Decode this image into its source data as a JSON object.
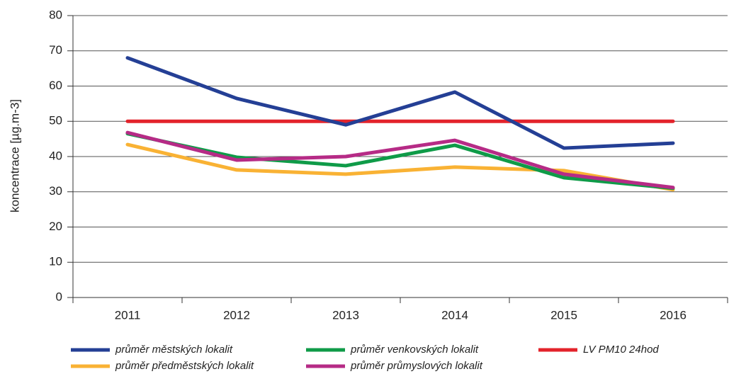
{
  "chart_data": {
    "type": "line",
    "y_label": "koncentrace [µg.m-3]",
    "categories": [
      "2011",
      "2012",
      "2013",
      "2014",
      "2015",
      "2016"
    ],
    "series": [
      {
        "name": "průměr městských lokalit",
        "color": "#243f95",
        "values": [
          68,
          56.5,
          49,
          58.3,
          42.4,
          43.8
        ]
      },
      {
        "name": "průměr předměstských lokalit",
        "color": "#f9b234",
        "values": [
          43.4,
          36.2,
          35,
          37,
          36,
          30.6
        ]
      },
      {
        "name": "průměr venkovských lokalit",
        "color": "#0f9b48",
        "values": [
          46.5,
          39.8,
          37.4,
          43.2,
          34,
          31
        ]
      },
      {
        "name": "průměr průmyslových lokalit",
        "color": "#b62b86",
        "values": [
          46.8,
          39,
          40,
          44.6,
          35,
          31.2
        ]
      },
      {
        "name": "LV PM10 24hod",
        "color": "#e3232b",
        "values": [
          50,
          50,
          50,
          50,
          50,
          50
        ]
      }
    ],
    "ylim": [
      0,
      80
    ],
    "yticks": [
      0,
      10,
      20,
      30,
      40,
      50,
      60,
      70,
      80
    ],
    "grid": true,
    "legend": "bottom"
  }
}
